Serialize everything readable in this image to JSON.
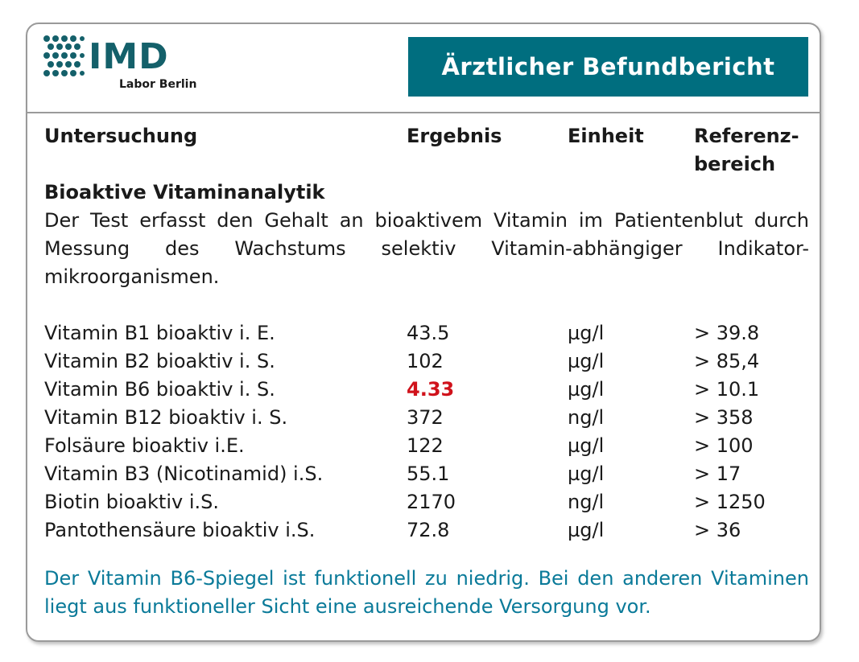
{
  "logo": {
    "name": "IMD",
    "subtitle": "Labor Berlin"
  },
  "header": {
    "title": "Ärztlicher Befundbericht"
  },
  "columns": [
    "Untersuchung",
    "Ergebnis",
    "Einheit",
    "Referenz-\nbereich"
  ],
  "section": {
    "title": "Bioaktive Vitaminanalytik",
    "description": "Der Test erfasst den Gehalt an bioaktivem Vitamin im Patientenblut durch Messung des Wachstums selektiv Vitamin-abhängiger Indikator-mikroorganismen."
  },
  "highlight_color": "#d0121b",
  "rows": [
    {
      "name": "Vitamin B1 bioaktiv i. E.",
      "result": "43.5",
      "unit": "µg/l",
      "reference": "> 39.8"
    },
    {
      "name": "Vitamin B2 bioaktiv i. S.",
      "result": "102",
      "unit": "µg/l",
      "reference": "> 85,4"
    },
    {
      "name": "Vitamin B6 bioaktiv i. S.",
      "result": "4.33",
      "unit": "µg/l",
      "reference": "> 10.1",
      "flagged": true
    },
    {
      "name": "Vitamin B12 bioaktiv i. S.",
      "result": "372",
      "unit": "ng/l",
      "reference": "> 358"
    },
    {
      "name": "Folsäure bioaktiv i.E.",
      "result": "122",
      "unit": "µg/l",
      "reference": "> 100"
    },
    {
      "name": "Vitamin B3 (Nicotinamid) i.S.",
      "result": "55.1",
      "unit": "µg/l",
      "reference": "> 17"
    },
    {
      "name": "Biotin bioaktiv i.S.",
      "result": "2170",
      "unit": "ng/l",
      "reference": "> 1250"
    },
    {
      "name": "Pantothensäure bioaktiv i.S.",
      "result": "72.8",
      "unit": "µg/l",
      "reference": "> 36"
    }
  ],
  "note": "Der Vitamin B6-Spiegel ist funktionell zu niedrig. Bei den anderen Vitaminen liegt aus funktioneller Sicht eine ausreichende Versorgung vor."
}
